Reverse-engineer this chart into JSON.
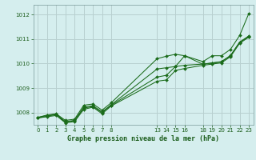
{
  "bg_color": "#d5eeee",
  "grid_color": "#b8d0d0",
  "line_color": "#1a6b1a",
  "marker_color": "#1a6b1a",
  "title": "Graphe pression niveau de la mer (hPa)",
  "ylim": [
    1007.5,
    1012.4
  ],
  "yticks": [
    1008,
    1009,
    1010,
    1011,
    1012
  ],
  "xticks": [
    0,
    1,
    2,
    3,
    4,
    5,
    6,
    7,
    8,
    13,
    14,
    15,
    16,
    18,
    19,
    20,
    21,
    22,
    23
  ],
  "xlim": [
    -0.5,
    23.5
  ],
  "series": [
    [
      0,
      1007.8
    ],
    [
      1,
      1007.9
    ],
    [
      2,
      1007.95
    ],
    [
      3,
      1007.68
    ],
    [
      4,
      1007.73
    ],
    [
      5,
      1008.3
    ],
    [
      6,
      1008.35
    ],
    [
      7,
      1008.1
    ],
    [
      8,
      1008.4
    ],
    [
      13,
      1010.2
    ],
    [
      14,
      1010.3
    ],
    [
      15,
      1010.38
    ],
    [
      16,
      1010.32
    ],
    [
      18,
      1010.08
    ],
    [
      19,
      1010.32
    ],
    [
      20,
      1010.32
    ],
    [
      21,
      1010.58
    ],
    [
      22,
      1011.15
    ],
    [
      23,
      1012.05
    ]
  ],
  "series2": [
    [
      0,
      1007.8
    ],
    [
      1,
      1007.88
    ],
    [
      2,
      1007.93
    ],
    [
      3,
      1007.63
    ],
    [
      4,
      1007.68
    ],
    [
      5,
      1008.22
    ],
    [
      6,
      1008.28
    ],
    [
      7,
      1008.03
    ],
    [
      8,
      1008.32
    ],
    [
      13,
      1009.78
    ],
    [
      14,
      1009.83
    ],
    [
      15,
      1009.88
    ],
    [
      16,
      1009.93
    ],
    [
      18,
      1009.98
    ],
    [
      19,
      1010.03
    ],
    [
      20,
      1010.08
    ],
    [
      21,
      1010.33
    ],
    [
      22,
      1010.88
    ],
    [
      23,
      1011.13
    ]
  ],
  "series3": [
    [
      0,
      1007.78
    ],
    [
      1,
      1007.85
    ],
    [
      2,
      1007.92
    ],
    [
      3,
      1007.6
    ],
    [
      4,
      1007.67
    ],
    [
      5,
      1008.18
    ],
    [
      6,
      1008.25
    ],
    [
      7,
      1008.0
    ],
    [
      8,
      1008.3
    ],
    [
      13,
      1009.45
    ],
    [
      14,
      1009.52
    ],
    [
      15,
      1009.88
    ],
    [
      16,
      1010.32
    ],
    [
      18,
      1009.97
    ],
    [
      19,
      1010.02
    ],
    [
      20,
      1010.07
    ],
    [
      21,
      1010.32
    ],
    [
      22,
      1010.87
    ],
    [
      23,
      1011.1
    ]
  ],
  "series4": [
    [
      0,
      1007.78
    ],
    [
      1,
      1007.83
    ],
    [
      2,
      1007.88
    ],
    [
      3,
      1007.58
    ],
    [
      4,
      1007.63
    ],
    [
      5,
      1008.13
    ],
    [
      6,
      1008.22
    ],
    [
      7,
      1007.95
    ],
    [
      8,
      1008.27
    ],
    [
      13,
      1009.28
    ],
    [
      14,
      1009.33
    ],
    [
      15,
      1009.72
    ],
    [
      16,
      1009.8
    ],
    [
      18,
      1009.93
    ],
    [
      19,
      1009.98
    ],
    [
      20,
      1010.03
    ],
    [
      21,
      1010.28
    ],
    [
      22,
      1010.83
    ],
    [
      23,
      1011.08
    ]
  ]
}
